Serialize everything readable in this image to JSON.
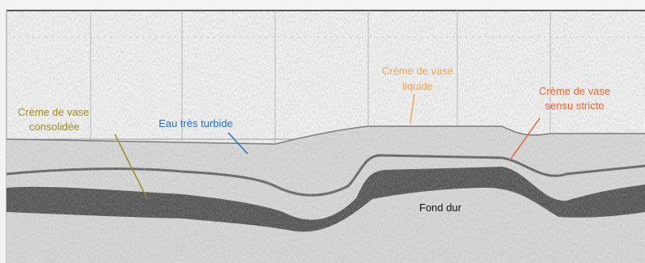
{
  "annotations": [
    {
      "lines": [
        "Crème de vase",
        "consolidée"
      ]
    },
    {
      "lines": [
        "Eau très turbide"
      ]
    },
    {
      "lines": [
        "Crème de vase",
        "liquide"
      ]
    },
    {
      "lines": [
        "Crème de vase",
        "sensu stricto"
      ]
    },
    {
      "lines": [
        "Fond dur"
      ]
    }
  ]
}
